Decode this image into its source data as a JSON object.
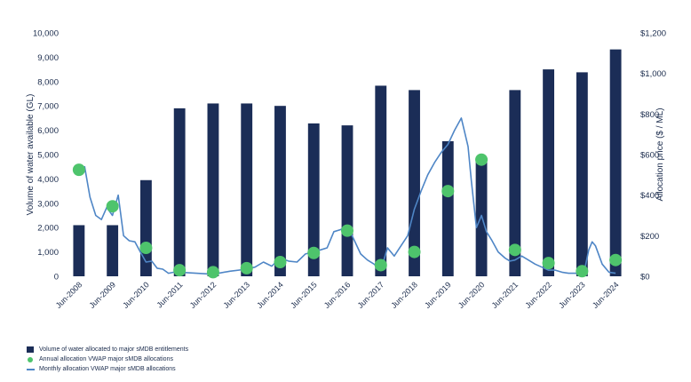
{
  "chart_data": {
    "type": "bar",
    "categories": [
      "Jun-2008",
      "Jun-2009",
      "Jun-2010",
      "Jun-2011",
      "Jun-2012",
      "Jun-2013",
      "Jun-2014",
      "Jun-2015",
      "Jun-2016",
      "Jun-2017",
      "Jun-2018",
      "Jun-2019",
      "Jun-2020",
      "Jun-2021",
      "Jun-2022",
      "Jun-2023",
      "Jun-2024"
    ],
    "ylabel": "Volume of water available (GL)",
    "y2label": "Allocation price ($ / ML)",
    "ylim": [
      0,
      10000
    ],
    "y2lim": [
      0,
      1200
    ],
    "yticks": [
      "0",
      "1,000",
      "2,000",
      "3,000",
      "4,000",
      "5,000",
      "6,000",
      "7,000",
      "8,000",
      "9,000",
      "10,000"
    ],
    "y2ticks": [
      "$0",
      "$200",
      "$400",
      "$600",
      "$800",
      "$1,000",
      "$1,200"
    ],
    "grid": false,
    "legend_position": "bottom-left",
    "series": [
      {
        "name": "Volume of water allocated to major sMDB entitlements",
        "kind": "bar",
        "axis": "left",
        "color": "#1b2d57",
        "values": [
          2100,
          2100,
          3950,
          6900,
          7100,
          7100,
          7000,
          6280,
          6200,
          7830,
          7650,
          5550,
          4800,
          7650,
          8500,
          8380,
          9320
        ]
      },
      {
        "name": "Annual allocation VWAP major sMDB allocations",
        "kind": "scatter",
        "axis": "right",
        "color": "#4ec46c",
        "values": [
          525,
          345,
          140,
          30,
          20,
          40,
          70,
          115,
          225,
          55,
          120,
          420,
          575,
          130,
          65,
          25,
          80
        ]
      },
      {
        "name": "Monthly allocation VWAP major sMDB allocations",
        "kind": "line",
        "axis": "right",
        "color": "#4f86c6",
        "x": [
          0,
          0.17,
          0.33,
          0.5,
          0.67,
          0.83,
          1,
          1.17,
          1.33,
          1.5,
          1.67,
          1.83,
          2,
          2.17,
          2.33,
          2.5,
          2.67,
          2.83,
          3,
          3.5,
          4,
          4.5,
          5,
          5.25,
          5.5,
          5.75,
          6,
          6.25,
          6.5,
          6.75,
          7,
          7.2,
          7.4,
          7.6,
          7.8,
          8,
          8.2,
          8.4,
          8.6,
          8.8,
          9,
          9.2,
          9.4,
          9.6,
          9.8,
          10,
          10.2,
          10.4,
          10.6,
          10.8,
          11,
          11.2,
          11.4,
          11.6,
          11.7,
          11.85,
          12,
          12.15,
          12.3,
          12.5,
          12.7,
          12.85,
          13,
          13.2,
          13.4,
          13.6,
          13.8,
          14,
          14.2,
          14.4,
          14.6,
          14.8,
          15,
          15.1,
          15.2,
          15.3,
          15.4,
          15.6,
          15.8,
          16
        ],
        "values": [
          530,
          540,
          390,
          300,
          280,
          340,
          300,
          400,
          200,
          175,
          170,
          120,
          70,
          75,
          40,
          35,
          15,
          20,
          20,
          15,
          10,
          25,
          35,
          45,
          70,
          50,
          90,
          75,
          70,
          110,
          120,
          130,
          140,
          220,
          230,
          250,
          180,
          110,
          80,
          60,
          30,
          140,
          100,
          150,
          200,
          330,
          420,
          500,
          560,
          610,
          650,
          720,
          780,
          640,
          470,
          240,
          300,
          220,
          180,
          120,
          90,
          75,
          80,
          100,
          80,
          60,
          45,
          30,
          30,
          20,
          15,
          15,
          10,
          50,
          130,
          170,
          150,
          60,
          20,
          15
        ]
      }
    ]
  }
}
